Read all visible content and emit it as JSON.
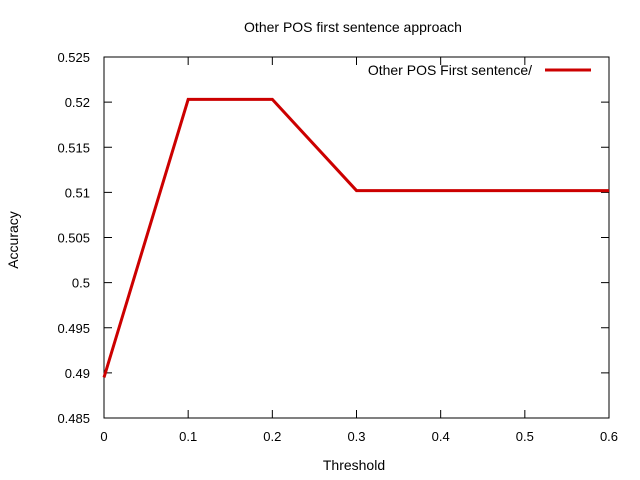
{
  "chart_data": {
    "type": "line",
    "title": "Other POS first sentence approach",
    "xlabel": "Threshold",
    "ylabel": "Accuracy",
    "xlim": [
      0,
      0.6
    ],
    "ylim": [
      0.485,
      0.525
    ],
    "x_ticks": [
      "0",
      "0.1",
      "0.2",
      "0.3",
      "0.4",
      "0.5",
      "0.6"
    ],
    "y_ticks": [
      "0.485",
      "0.49",
      "0.495",
      "0.5",
      "0.505",
      "0.51",
      "0.515",
      "0.52",
      "0.525"
    ],
    "grid": false,
    "legend_position": "top-right",
    "series": [
      {
        "name": "Other POS First sentence/",
        "color": "#cc0000",
        "x": [
          0,
          0.1,
          0.2,
          0.3,
          0.4,
          0.5,
          0.6
        ],
        "y": [
          0.4895,
          0.5203,
          0.5203,
          0.5102,
          0.5102,
          0.5102,
          0.5102
        ]
      }
    ]
  }
}
